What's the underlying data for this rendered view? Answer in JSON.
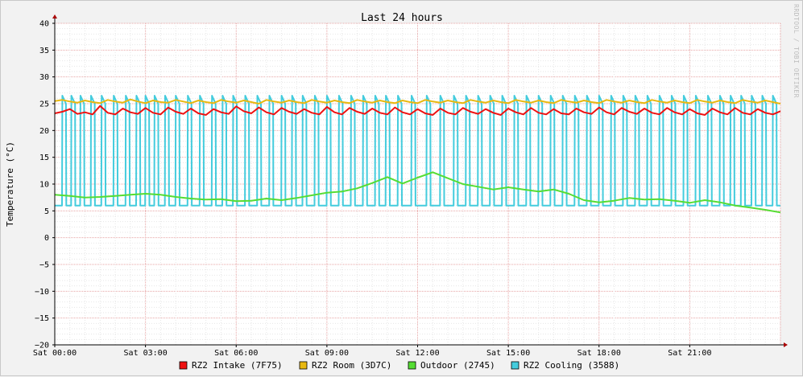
{
  "chart_data": {
    "type": "line",
    "title": "Last 24 hours",
    "ylabel": "Temperature (°C)",
    "xlabel": "",
    "watermark": "RRDTOOL / TOBI OETIKER",
    "ylim": [
      -20,
      40
    ],
    "y_ticks": [
      40,
      35,
      30,
      25,
      20,
      15,
      10,
      5,
      0,
      -5,
      -10,
      -15,
      -20
    ],
    "xlim_hours": [
      0,
      24
    ],
    "x_ticks": [
      {
        "h": 0,
        "label": "Sat 00:00"
      },
      {
        "h": 3,
        "label": "Sat 03:00"
      },
      {
        "h": 6,
        "label": "Sat 06:00"
      },
      {
        "h": 9,
        "label": "Sat 09:00"
      },
      {
        "h": 12,
        "label": "Sat 12:00"
      },
      {
        "h": 15,
        "label": "Sat 15:00"
      },
      {
        "h": 18,
        "label": "Sat 18:00"
      },
      {
        "h": 21,
        "label": "Sat 21:00"
      }
    ],
    "grid": true,
    "legend_position": "bottom",
    "series": [
      {
        "name": "RZ2 Intake (7F75)",
        "color": "#ee1111",
        "x": [
          0,
          0.25,
          0.5,
          0.75,
          1,
          1.25,
          1.5,
          1.75,
          2,
          2.25,
          2.5,
          2.75,
          3,
          3.25,
          3.5,
          3.75,
          4,
          4.25,
          4.5,
          4.75,
          5,
          5.25,
          5.5,
          5.75,
          6,
          6.25,
          6.5,
          6.75,
          7,
          7.25,
          7.5,
          7.75,
          8,
          8.25,
          8.5,
          8.75,
          9,
          9.25,
          9.5,
          9.75,
          10,
          10.25,
          10.5,
          10.75,
          11,
          11.25,
          11.5,
          11.75,
          12,
          12.25,
          12.5,
          12.75,
          13,
          13.25,
          13.5,
          13.75,
          14,
          14.25,
          14.5,
          14.75,
          15,
          15.25,
          15.5,
          15.75,
          16,
          16.25,
          16.5,
          16.75,
          17,
          17.25,
          17.5,
          17.75,
          18,
          18.25,
          18.5,
          18.75,
          19,
          19.25,
          19.5,
          19.75,
          20,
          20.25,
          20.5,
          20.75,
          21,
          21.25,
          21.5,
          21.75,
          22,
          22.25,
          22.5,
          22.75,
          23,
          23.25,
          23.5,
          23.75,
          24
        ],
        "values": [
          23.2,
          23.5,
          24.0,
          23.1,
          23.4,
          23.0,
          24.6,
          23.3,
          23.0,
          24.1,
          23.4,
          23.1,
          24.2,
          23.3,
          23.0,
          24.3,
          23.5,
          23.1,
          24.1,
          23.2,
          22.9,
          24.0,
          23.4,
          23.1,
          24.5,
          23.6,
          23.2,
          24.3,
          23.4,
          23.0,
          24.2,
          23.5,
          23.1,
          24.0,
          23.3,
          23.0,
          24.4,
          23.4,
          23.0,
          24.2,
          23.5,
          23.1,
          24.1,
          23.3,
          23.0,
          24.3,
          23.4,
          23.0,
          24.0,
          23.2,
          22.9,
          24.1,
          23.3,
          23.0,
          24.2,
          23.5,
          23.1,
          24.0,
          23.3,
          22.9,
          24.1,
          23.4,
          23.0,
          24.2,
          23.3,
          23.0,
          24.0,
          23.2,
          23.0,
          24.1,
          23.4,
          23.1,
          24.3,
          23.4,
          23.0,
          24.2,
          23.5,
          23.1,
          24.1,
          23.3,
          23.0,
          24.2,
          23.4,
          23.0,
          24.0,
          23.2,
          22.9,
          24.1,
          23.4,
          23.0,
          24.2,
          23.3,
          23.0,
          24.0,
          23.3,
          23.0,
          23.6
        ]
      },
      {
        "name": "RZ2 Room (3D7C)",
        "color": "#e8b810",
        "x": [
          0,
          0.25,
          0.5,
          0.75,
          1,
          1.25,
          1.5,
          1.75,
          2,
          2.25,
          2.5,
          2.75,
          3,
          3.25,
          3.5,
          3.75,
          4,
          4.25,
          4.5,
          4.75,
          5,
          5.25,
          5.5,
          5.75,
          6,
          6.25,
          6.5,
          6.75,
          7,
          7.25,
          7.5,
          7.75,
          8,
          8.25,
          8.5,
          8.75,
          9,
          9.25,
          9.5,
          9.75,
          10,
          10.25,
          10.5,
          10.75,
          11,
          11.25,
          11.5,
          11.75,
          12,
          12.25,
          12.5,
          12.75,
          13,
          13.25,
          13.5,
          13.75,
          14,
          14.25,
          14.5,
          14.75,
          15,
          15.25,
          15.5,
          15.75,
          16,
          16.25,
          16.5,
          16.75,
          17,
          17.25,
          17.5,
          17.75,
          18,
          18.25,
          18.5,
          18.75,
          19,
          19.25,
          19.5,
          19.75,
          20,
          20.25,
          20.5,
          20.75,
          21,
          21.25,
          21.5,
          21.75,
          22,
          22.25,
          22.5,
          22.75,
          23,
          23.25,
          23.5,
          23.75,
          24
        ],
        "values": [
          25.5,
          25.7,
          25.4,
          25.2,
          25.6,
          25.3,
          25.1,
          25.7,
          25.4,
          25.2,
          25.8,
          25.4,
          25.1,
          25.6,
          25.3,
          25.2,
          25.7,
          25.4,
          25.1,
          25.6,
          25.3,
          25.1,
          25.7,
          25.4,
          25.2,
          25.6,
          25.3,
          25.0,
          25.7,
          25.4,
          25.2,
          25.6,
          25.3,
          25.1,
          25.7,
          25.4,
          25.2,
          25.6,
          25.3,
          25.1,
          25.7,
          25.4,
          25.2,
          25.6,
          25.3,
          25.1,
          25.6,
          25.3,
          25.1,
          25.7,
          25.4,
          25.2,
          25.6,
          25.3,
          25.1,
          25.7,
          25.4,
          25.2,
          25.6,
          25.3,
          25.1,
          25.7,
          25.4,
          25.2,
          25.6,
          25.3,
          25.1,
          25.7,
          25.4,
          25.2,
          25.6,
          25.3,
          25.1,
          25.7,
          25.4,
          25.2,
          25.6,
          25.3,
          25.1,
          25.7,
          25.4,
          25.2,
          25.6,
          25.3,
          25.1,
          25.7,
          25.4,
          25.2,
          25.6,
          25.3,
          25.1,
          25.7,
          25.4,
          25.2,
          25.6,
          25.3,
          25.0
        ]
      },
      {
        "name": "Outdoor (2745)",
        "color": "#55dd33",
        "x": [
          0,
          0.5,
          1,
          1.5,
          2,
          2.5,
          3,
          3.5,
          4,
          4.5,
          5,
          5.5,
          6,
          6.5,
          7,
          7.5,
          8,
          8.5,
          9,
          9.5,
          10,
          10.5,
          11,
          11.5,
          12,
          12.5,
          13,
          13.5,
          14,
          14.5,
          15,
          15.5,
          16,
          16.5,
          17,
          17.5,
          18,
          18.5,
          19,
          19.5,
          20,
          20.5,
          21,
          21.5,
          22,
          22.5,
          23,
          23.5,
          24
        ],
        "values": [
          8.0,
          7.8,
          7.5,
          7.6,
          7.8,
          8.0,
          8.2,
          8.0,
          7.6,
          7.3,
          7.1,
          7.2,
          6.8,
          6.9,
          7.3,
          7.0,
          7.4,
          7.9,
          8.4,
          8.6,
          9.2,
          10.2,
          11.3,
          10.1,
          11.2,
          12.2,
          11.1,
          10.0,
          9.5,
          9.0,
          9.4,
          9.0,
          8.6,
          9.0,
          8.2,
          7.0,
          6.6,
          6.9,
          7.4,
          7.1,
          7.2,
          6.9,
          6.5,
          7.0,
          6.6,
          6.0,
          5.6,
          5.2,
          4.7
        ]
      },
      {
        "name": "RZ2 Cooling (3588)",
        "color": "#44ccdd",
        "pattern": "square-wave cycling between ~6 °C baseline and ~26 °C peaks",
        "baseline": 6.0,
        "peak": 26.5,
        "peaks_h": [
          0.25,
          0.55,
          0.85,
          1.2,
          1.55,
          1.95,
          2.35,
          2.7,
          3.0,
          3.3,
          3.65,
          4.0,
          4.4,
          4.8,
          5.2,
          5.55,
          5.9,
          6.3,
          6.7,
          7.1,
          7.5,
          7.85,
          8.2,
          8.6,
          9.0,
          9.4,
          9.8,
          10.2,
          10.6,
          10.95,
          11.35,
          11.8,
          12.3,
          12.75,
          13.2,
          13.6,
          14.0,
          14.4,
          14.8,
          15.2,
          15.6,
          16.0,
          16.4,
          16.8,
          17.2,
          17.6,
          18.0,
          18.4,
          18.8,
          19.2,
          19.6,
          20.0,
          20.4,
          20.8,
          21.2,
          21.6,
          22.0,
          22.35,
          22.7,
          23.05,
          23.4,
          23.75
        ],
        "peak_width_h": 0.12
      }
    ]
  }
}
